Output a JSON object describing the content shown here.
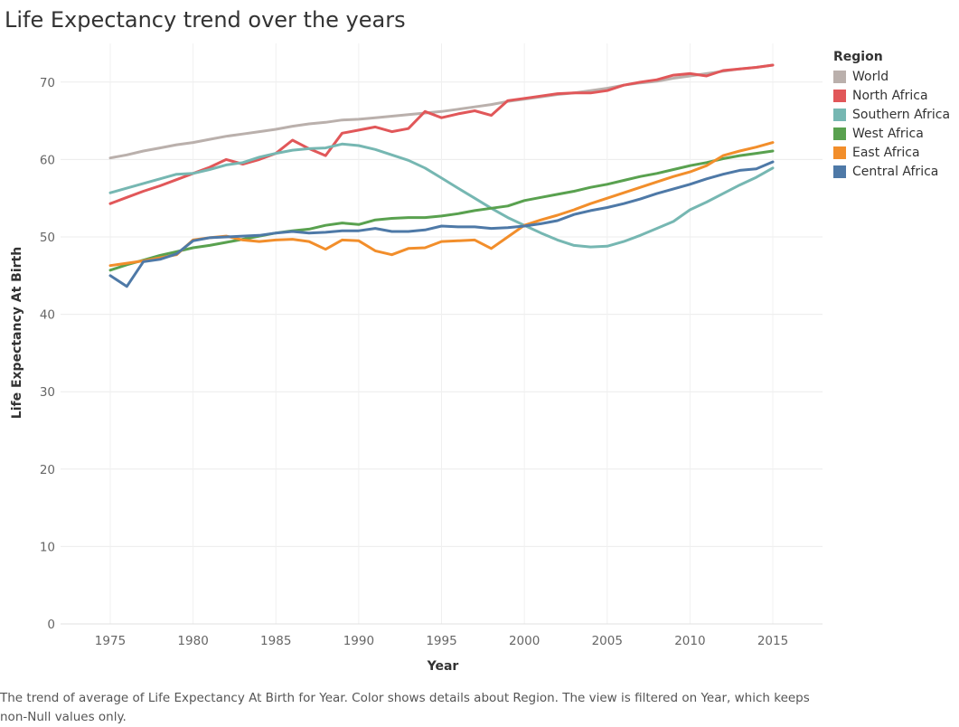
{
  "title": "Life Expectancy trend over the years",
  "caption": "The trend of average of Life Expectancy At Birth for Year.  Color shows details about Region. The view is filtered on Year, which keeps non-Null values only.",
  "chart_data": {
    "type": "line",
    "title": "Life Expectancy trend over the years",
    "xlabel": "Year",
    "ylabel": "Life Expectancy At Birth",
    "xlim": [
      1972,
      2018
    ],
    "ylim": [
      0,
      75
    ],
    "x_ticks": [
      1975,
      1980,
      1985,
      1990,
      1995,
      2000,
      2005,
      2010,
      2015
    ],
    "y_ticks": [
      0,
      10,
      20,
      30,
      40,
      50,
      60,
      70
    ],
    "grid": true,
    "legend_title": "Region",
    "legend_position": "right",
    "x": [
      1975,
      1976,
      1977,
      1978,
      1979,
      1980,
      1981,
      1982,
      1983,
      1984,
      1985,
      1986,
      1987,
      1988,
      1989,
      1990,
      1991,
      1992,
      1993,
      1994,
      1995,
      1996,
      1997,
      1998,
      1999,
      2000,
      2001,
      2002,
      2003,
      2004,
      2005,
      2006,
      2007,
      2008,
      2009,
      2010,
      2011,
      2012,
      2013,
      2014,
      2015
    ],
    "series": [
      {
        "name": "World",
        "color": "#bab0ac",
        "values": [
          60.2,
          60.6,
          61.1,
          61.5,
          61.9,
          62.2,
          62.6,
          63.0,
          63.3,
          63.6,
          63.9,
          64.3,
          64.6,
          64.8,
          65.1,
          65.2,
          65.4,
          65.6,
          65.8,
          66.0,
          66.2,
          66.5,
          66.8,
          67.1,
          67.5,
          67.8,
          68.1,
          68.4,
          68.6,
          68.9,
          69.2,
          69.6,
          69.9,
          70.1,
          70.5,
          70.8,
          71.1,
          71.4,
          71.7,
          71.9,
          72.2
        ]
      },
      {
        "name": "North Africa",
        "color": "#e15759",
        "values": [
          54.3,
          55.1,
          55.9,
          56.6,
          57.4,
          58.2,
          59.0,
          60.0,
          59.4,
          60.0,
          60.8,
          62.5,
          61.4,
          60.5,
          63.4,
          63.8,
          64.2,
          63.6,
          64.0,
          66.2,
          65.4,
          65.9,
          66.3,
          65.7,
          67.6,
          67.9,
          68.2,
          68.5,
          68.6,
          68.6,
          68.9,
          69.6,
          70.0,
          70.3,
          70.9,
          71.1,
          70.8,
          71.5,
          71.7,
          71.9,
          72.2
        ]
      },
      {
        "name": "Southern Africa",
        "color": "#76b7b2",
        "values": [
          55.7,
          56.3,
          56.9,
          57.5,
          58.1,
          58.2,
          58.7,
          59.3,
          59.6,
          60.3,
          60.8,
          61.2,
          61.4,
          61.5,
          62.0,
          61.8,
          61.3,
          60.6,
          59.9,
          58.9,
          57.6,
          56.3,
          55.0,
          53.7,
          52.5,
          51.5,
          50.5,
          49.6,
          48.9,
          48.7,
          48.8,
          49.4,
          50.2,
          51.1,
          52.0,
          53.5,
          54.5,
          55.6,
          56.7,
          57.7,
          58.9
        ]
      },
      {
        "name": "West Africa",
        "color": "#59a14f",
        "values": [
          45.7,
          46.4,
          47.0,
          47.6,
          48.1,
          48.6,
          48.9,
          49.3,
          49.7,
          50.1,
          50.5,
          50.8,
          51.0,
          51.5,
          51.8,
          51.6,
          52.2,
          52.4,
          52.5,
          52.5,
          52.7,
          53.0,
          53.4,
          53.7,
          54.0,
          54.7,
          55.1,
          55.5,
          55.9,
          56.4,
          56.8,
          57.3,
          57.8,
          58.2,
          58.7,
          59.2,
          59.6,
          60.1,
          60.5,
          60.8,
          61.1
        ]
      },
      {
        "name": "East Africa",
        "color": "#f28e2b",
        "values": [
          46.3,
          46.6,
          46.9,
          47.3,
          47.7,
          49.6,
          49.9,
          50.1,
          49.6,
          49.4,
          49.6,
          49.7,
          49.4,
          48.4,
          49.6,
          49.5,
          48.2,
          47.7,
          48.5,
          48.6,
          49.4,
          49.5,
          49.6,
          48.5,
          50.0,
          51.5,
          52.2,
          52.8,
          53.5,
          54.3,
          55.0,
          55.7,
          56.4,
          57.1,
          57.8,
          58.4,
          59.2,
          60.5,
          61.1,
          61.6,
          62.2
        ]
      },
      {
        "name": "Central Africa",
        "color": "#4e79a7",
        "values": [
          45.0,
          43.6,
          46.8,
          47.1,
          47.8,
          49.5,
          49.9,
          50.0,
          50.1,
          50.2,
          50.5,
          50.7,
          50.5,
          50.6,
          50.8,
          50.8,
          51.1,
          50.7,
          50.7,
          50.9,
          51.4,
          51.3,
          51.3,
          51.1,
          51.2,
          51.4,
          51.7,
          52.1,
          52.9,
          53.4,
          53.8,
          54.3,
          54.9,
          55.6,
          56.2,
          56.8,
          57.5,
          58.1,
          58.6,
          58.8,
          59.7
        ]
      }
    ]
  }
}
